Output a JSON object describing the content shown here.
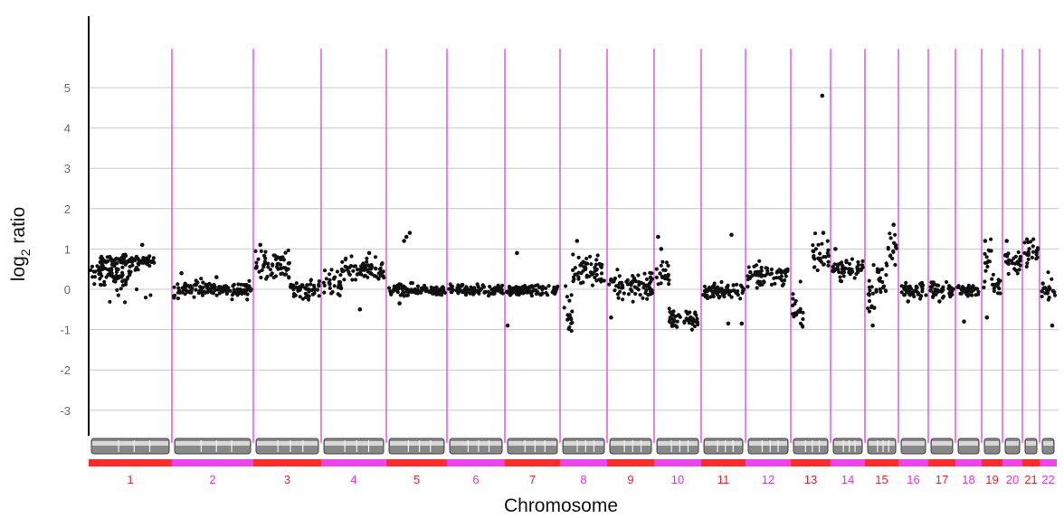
{
  "chart_data": {
    "type": "scatter",
    "title": "",
    "xlabel": "Chromosome",
    "ylabel_main": "log",
    "ylabel_sub": "2",
    "ylabel_rest": " ratio",
    "y_ticks": [
      5,
      4,
      3,
      2,
      1,
      0,
      -1,
      -2,
      -3
    ],
    "ylim": [
      -3.8,
      6.2
    ],
    "grid": true,
    "colors": {
      "points": "#111111",
      "boundary": "#e040e0",
      "grid": "#c8c8c8",
      "band_red": "#ff2a2a",
      "band_magenta": "#ee44ee",
      "label_red": "#e8202c",
      "label_magenta": "#dd33dd",
      "axis": "#000000"
    },
    "chromosomes": [
      {
        "name": "1",
        "segments": [
          [
            0,
            0.35,
            0.5,
            0.15
          ],
          [
            0.12,
            0.72,
            0.8,
            0.06
          ],
          [
            0.6,
            0.35,
            0.5,
            0.2
          ],
          [
            0.8,
            -0.1,
            0.2,
            0.1
          ]
        ],
        "outliers": [
          [
            0.65,
            1.1
          ]
        ]
      },
      {
        "name": "2",
        "segments": [
          [
            0,
            0.0,
            1,
            0.1
          ]
        ],
        "outliers": [
          [
            0.1,
            0.4
          ],
          [
            0.55,
            0.3
          ]
        ]
      },
      {
        "name": "3",
        "segments": [
          [
            0,
            0.6,
            0.55,
            0.2
          ],
          [
            0.55,
            0.0,
            1,
            0.12
          ]
        ],
        "outliers": [
          [
            0.08,
            1.1
          ]
        ]
      },
      {
        "name": "4",
        "segments": [
          [
            0,
            0.15,
            0.3,
            0.15
          ],
          [
            0.3,
            0.45,
            1,
            0.15
          ]
        ],
        "outliers": [
          [
            0.6,
            -0.5
          ],
          [
            0.75,
            0.9
          ]
        ]
      },
      {
        "name": "5",
        "segments": [
          [
            0,
            -0.02,
            1,
            0.07
          ]
        ],
        "outliers": [
          [
            0.38,
            1.4
          ],
          [
            0.32,
            1.3
          ],
          [
            0.28,
            1.2
          ],
          [
            0.2,
            -0.35
          ]
        ]
      },
      {
        "name": "6",
        "segments": [
          [
            0,
            -0.02,
            1,
            0.06
          ]
        ],
        "outliers": []
      },
      {
        "name": "7",
        "segments": [
          [
            0,
            -0.02,
            1,
            0.06
          ]
        ],
        "outliers": [
          [
            0.02,
            -0.9
          ],
          [
            0.2,
            0.9
          ]
        ]
      },
      {
        "name": "8",
        "segments": [
          [
            0,
            -0.6,
            0.25,
            0.3
          ],
          [
            0.25,
            0.5,
            1,
            0.2
          ]
        ],
        "outliers": [
          [
            0.35,
            1.2
          ]
        ]
      },
      {
        "name": "9",
        "segments": [
          [
            0,
            0.1,
            1,
            0.2
          ]
        ],
        "outliers": [
          [
            0.05,
            -0.7
          ]
        ]
      },
      {
        "name": "10",
        "segments": [
          [
            0,
            0.4,
            0.3,
            0.2
          ],
          [
            0.3,
            -0.75,
            1,
            0.12
          ]
        ],
        "outliers": [
          [
            0.05,
            1.3
          ],
          [
            0.12,
            1.0
          ]
        ]
      },
      {
        "name": "11",
        "segments": [
          [
            0,
            -0.03,
            1,
            0.1
          ]
        ],
        "outliers": [
          [
            0.7,
            1.35
          ],
          [
            0.62,
            -0.85
          ],
          [
            0.95,
            -0.85
          ]
        ]
      },
      {
        "name": "12",
        "segments": [
          [
            0,
            0.35,
            1,
            0.12
          ]
        ],
        "outliers": []
      },
      {
        "name": "13",
        "segments": [
          [
            0,
            -0.5,
            0.3,
            0.25
          ],
          [
            0.55,
            0.75,
            1,
            0.25
          ]
        ],
        "outliers": [
          [
            0.82,
            4.8
          ],
          [
            0.85,
            1.4
          ]
        ]
      },
      {
        "name": "14",
        "segments": [
          [
            0,
            0.5,
            1,
            0.12
          ]
        ],
        "outliers": [
          [
            0.1,
            1.0
          ]
        ]
      },
      {
        "name": "15",
        "segments": [
          [
            0,
            0.0,
            0.35,
            0.25
          ],
          [
            0.35,
            0.3,
            0.7,
            0.2
          ],
          [
            0.7,
            1.05,
            1,
            0.2
          ]
        ],
        "outliers": [
          [
            0.2,
            -0.9
          ],
          [
            0.9,
            1.6
          ]
        ]
      },
      {
        "name": "16",
        "segments": [
          [
            0,
            0.0,
            1,
            0.1
          ]
        ],
        "outliers": [
          [
            0.3,
            -0.3
          ]
        ]
      },
      {
        "name": "17",
        "segments": [
          [
            0,
            -0.02,
            1,
            0.1
          ]
        ],
        "outliers": [
          [
            0.4,
            -0.3
          ]
        ]
      },
      {
        "name": "18",
        "segments": [
          [
            0,
            -0.05,
            1,
            0.1
          ]
        ],
        "outliers": [
          [
            0.3,
            -0.8
          ]
        ]
      },
      {
        "name": "19",
        "segments": [
          [
            0,
            0.5,
            0.5,
            0.3
          ],
          [
            0.5,
            0.1,
            1,
            0.15
          ]
        ],
        "outliers": [
          [
            0.2,
            -0.7
          ],
          [
            0.1,
            1.2
          ]
        ]
      },
      {
        "name": "20",
        "segments": [
          [
            0,
            0.65,
            1,
            0.15
          ]
        ],
        "outliers": [
          [
            0.15,
            1.2
          ]
        ]
      },
      {
        "name": "21",
        "segments": [
          [
            0,
            0.95,
            1,
            0.15
          ]
        ],
        "outliers": []
      },
      {
        "name": "22",
        "segments": [
          [
            0,
            0.0,
            1,
            0.15
          ]
        ],
        "outliers": [
          [
            0.8,
            -0.9
          ]
        ]
      }
    ]
  }
}
